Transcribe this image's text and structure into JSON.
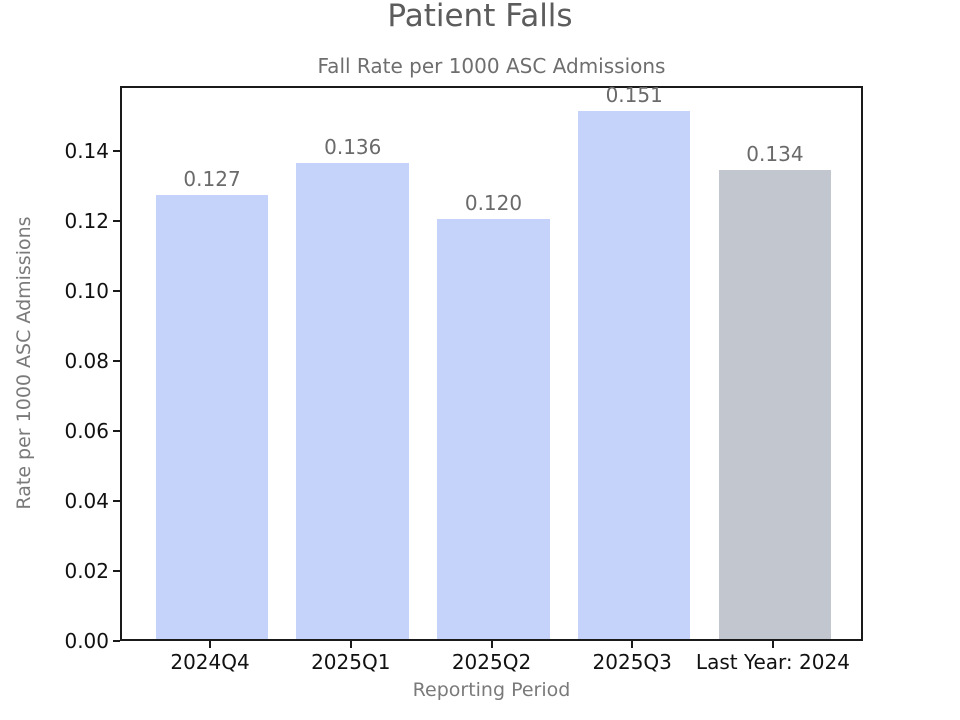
{
  "figure": {
    "suptitle": "Patient Falls"
  },
  "chart_data": {
    "type": "bar",
    "suptitle": "Patient Falls",
    "title": "Fall Rate per 1000 ASC Admissions",
    "categories": [
      "2024Q4",
      "2025Q1",
      "2025Q2",
      "2025Q3",
      "Last Year: 2024"
    ],
    "values": [
      0.127,
      0.136,
      0.12,
      0.151,
      0.134
    ],
    "value_labels": [
      "0.127",
      "0.136",
      "0.120",
      "0.151",
      "0.134"
    ],
    "bar_colors": [
      "#c5d2fa",
      "#c5d2fa",
      "#c5d2fa",
      "#c5d2fa",
      "#c2c6ce"
    ],
    "xlabel": "Reporting Period",
    "ylabel": "Rate per 1000 ASC Admissions",
    "ylim": [
      0,
      0.1586
    ],
    "yticks": [
      "0.00",
      "0.02",
      "0.04",
      "0.06",
      "0.08",
      "0.10",
      "0.12",
      "0.14"
    ],
    "ytick_values": [
      0.0,
      0.02,
      0.04,
      0.06,
      0.08,
      0.1,
      0.12,
      0.14
    ],
    "grid": false,
    "legend": null,
    "colors": {
      "bar_primary": "#c5d2fa",
      "bar_comparison": "#c2c6ce",
      "spine": "#1a1a1a",
      "tick_label": "#111111",
      "title_gray": "#5c5c5c",
      "subtitle_gray": "#6e6e6e",
      "value_label_gray": "#6a6a6a",
      "axis_label_gray": "#7a7a7a"
    }
  }
}
